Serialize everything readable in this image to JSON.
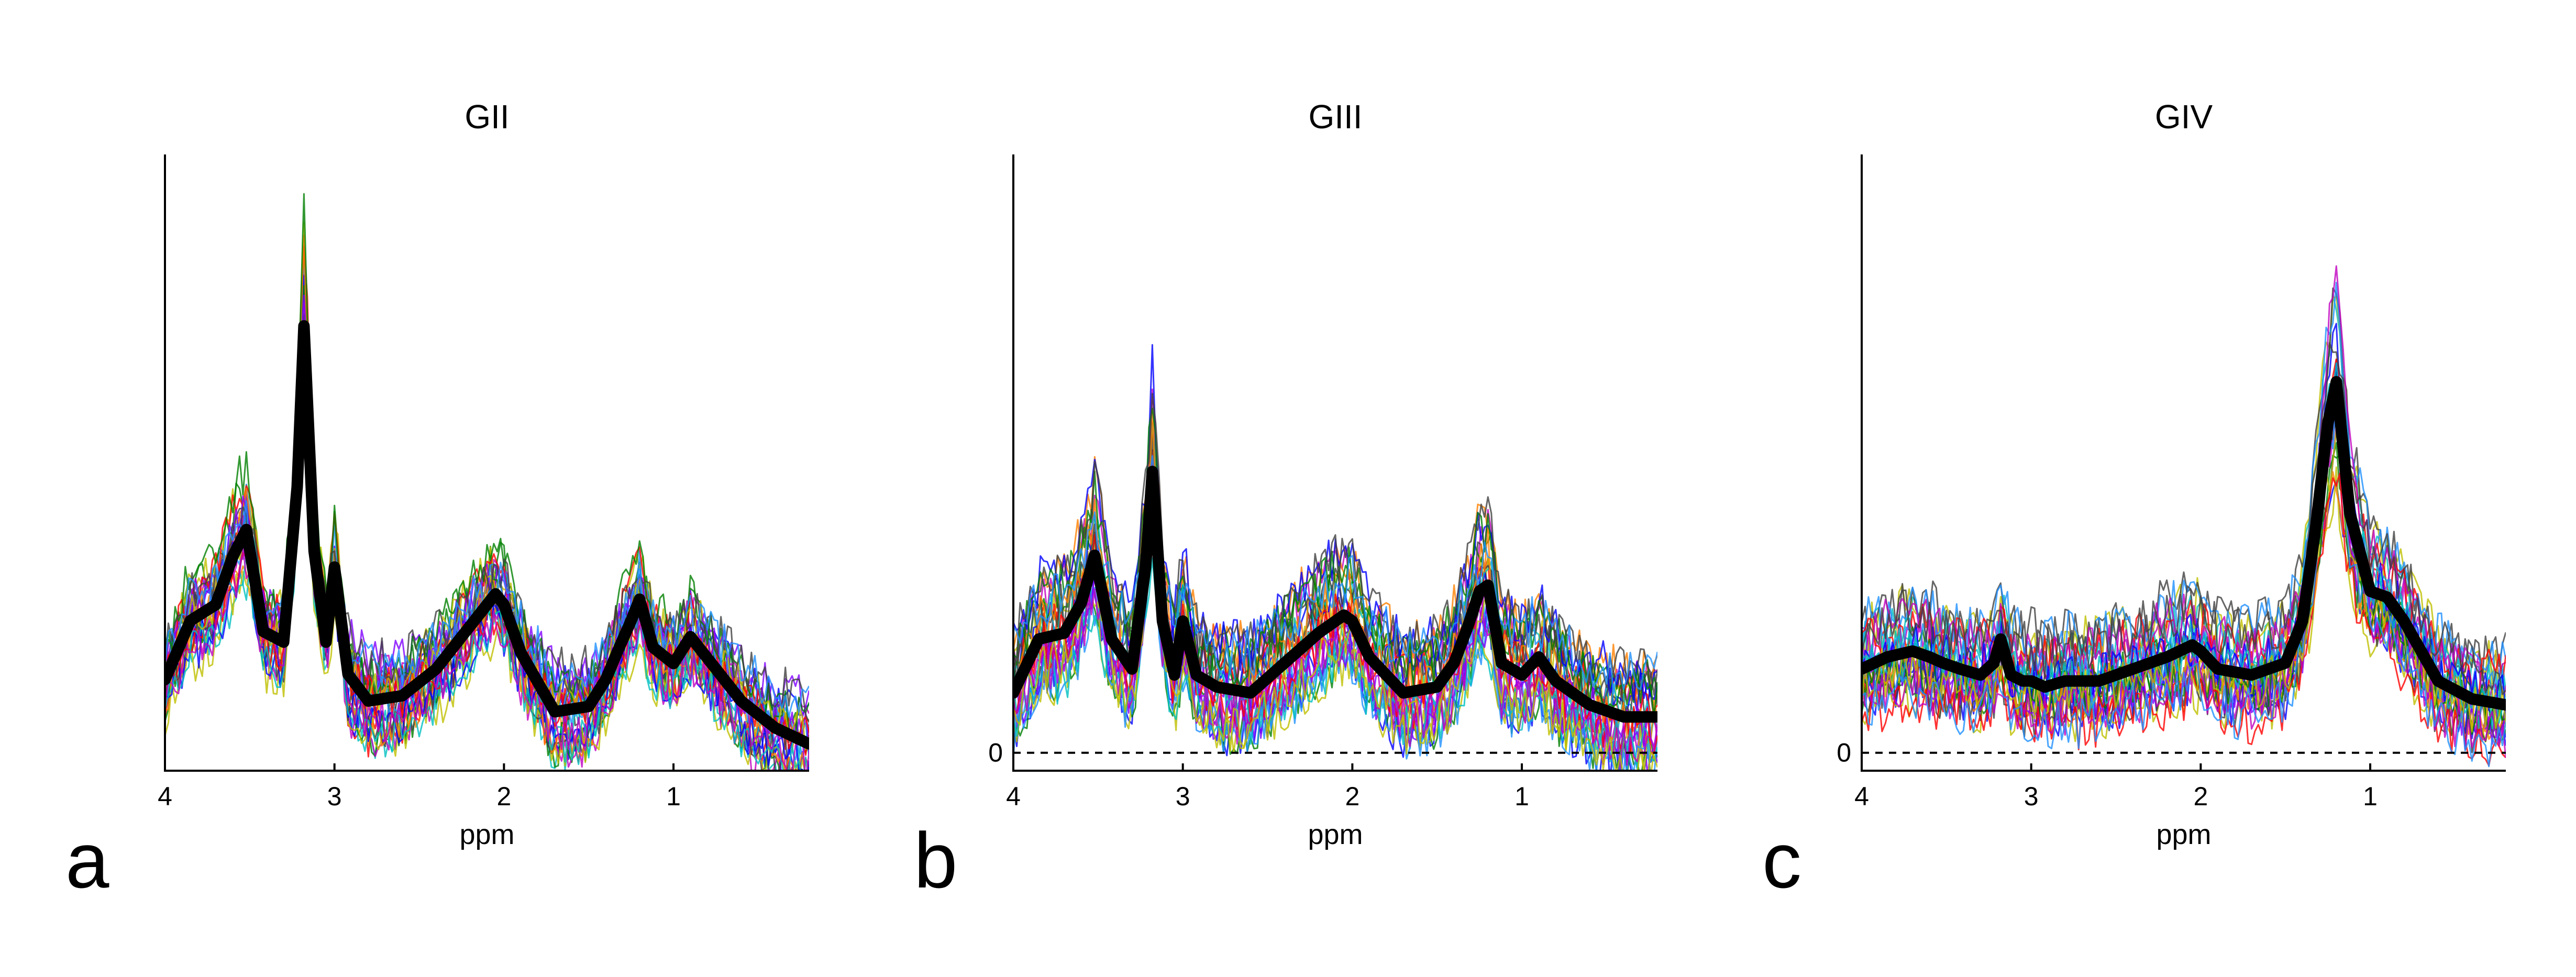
{
  "chart_data": [
    {
      "type": "line",
      "panel_label": "a",
      "title": "GII",
      "xlabel": "ppm",
      "ylabel": "",
      "xlim": [
        4,
        0.2
      ],
      "x_reversed": true,
      "xticks": [
        4,
        3,
        2,
        1
      ],
      "show_zero_line": false,
      "zero_label": "",
      "ylim": [
        -0.15,
        1.0
      ],
      "x": [
        4.0,
        3.85,
        3.7,
        3.6,
        3.52,
        3.42,
        3.3,
        3.22,
        3.18,
        3.12,
        3.05,
        3.0,
        2.92,
        2.8,
        2.6,
        2.4,
        2.2,
        2.05,
        2.0,
        1.9,
        1.7,
        1.5,
        1.4,
        1.32,
        1.25,
        1.2,
        1.12,
        1.0,
        0.9,
        0.8,
        0.6,
        0.4,
        0.2
      ],
      "mean": [
        0.02,
        0.13,
        0.16,
        0.25,
        0.3,
        0.11,
        0.09,
        0.38,
        0.68,
        0.26,
        0.09,
        0.23,
        0.03,
        -0.02,
        -0.01,
        0.04,
        0.12,
        0.18,
        0.16,
        0.07,
        -0.04,
        -0.03,
        0.02,
        0.08,
        0.13,
        0.17,
        0.08,
        0.05,
        0.1,
        0.06,
        -0.02,
        -0.07,
        -0.1
      ],
      "series_colors": [
        "#0000ff",
        "#008000",
        "#ff0000",
        "#00bfbf",
        "#bf00bf",
        "#bfbf00",
        "#404040",
        "#1e90ff",
        "#ff7f00",
        "#7f00ff"
      ]
    },
    {
      "type": "line",
      "panel_label": "b",
      "title": "GIII",
      "xlabel": "ppm",
      "ylabel": "",
      "xlim": [
        4,
        0.2
      ],
      "x_reversed": true,
      "xticks": [
        4,
        3,
        2,
        1
      ],
      "show_zero_line": true,
      "zero_label": "0",
      "ylim": [
        -0.03,
        1.0
      ],
      "x": [
        4.0,
        3.85,
        3.7,
        3.6,
        3.52,
        3.42,
        3.3,
        3.22,
        3.18,
        3.12,
        3.05,
        3.0,
        2.92,
        2.8,
        2.6,
        2.4,
        2.2,
        2.05,
        2.0,
        1.9,
        1.7,
        1.5,
        1.4,
        1.32,
        1.25,
        1.2,
        1.12,
        1.0,
        0.9,
        0.8,
        0.6,
        0.4,
        0.2
      ],
      "mean": [
        0.1,
        0.19,
        0.2,
        0.25,
        0.33,
        0.19,
        0.14,
        0.31,
        0.47,
        0.22,
        0.13,
        0.22,
        0.13,
        0.11,
        0.1,
        0.15,
        0.2,
        0.23,
        0.22,
        0.16,
        0.1,
        0.11,
        0.15,
        0.21,
        0.27,
        0.28,
        0.15,
        0.13,
        0.16,
        0.12,
        0.08,
        0.06,
        0.06
      ],
      "series_colors": [
        "#0000ff",
        "#008000",
        "#ff0000",
        "#00bfbf",
        "#bf00bf",
        "#bfbf00",
        "#404040",
        "#1e90ff",
        "#ff7f00",
        "#7f00ff"
      ]
    },
    {
      "type": "line",
      "panel_label": "c",
      "title": "GIV",
      "xlabel": "ppm",
      "ylabel": "",
      "xlim": [
        4,
        0.2
      ],
      "x_reversed": true,
      "xticks": [
        4,
        3,
        2,
        1
      ],
      "show_zero_line": true,
      "zero_label": "0",
      "ylim": [
        -0.03,
        1.0
      ],
      "x": [
        4.0,
        3.85,
        3.7,
        3.6,
        3.52,
        3.42,
        3.3,
        3.22,
        3.18,
        3.12,
        3.05,
        3.0,
        2.92,
        2.8,
        2.6,
        2.4,
        2.2,
        2.05,
        2.0,
        1.9,
        1.7,
        1.5,
        1.4,
        1.32,
        1.25,
        1.2,
        1.12,
        1.0,
        0.9,
        0.8,
        0.6,
        0.4,
        0.2
      ],
      "mean": [
        0.14,
        0.16,
        0.17,
        0.16,
        0.15,
        0.14,
        0.13,
        0.15,
        0.19,
        0.13,
        0.12,
        0.12,
        0.11,
        0.12,
        0.12,
        0.14,
        0.16,
        0.18,
        0.17,
        0.14,
        0.13,
        0.15,
        0.22,
        0.38,
        0.55,
        0.62,
        0.4,
        0.27,
        0.26,
        0.22,
        0.12,
        0.09,
        0.08
      ],
      "series_colors": [
        "#0000ff",
        "#008000",
        "#ff0000",
        "#00bfbf",
        "#bf00bf",
        "#bfbf00",
        "#404040",
        "#1e90ff",
        "#ff7f00",
        "#7f00ff"
      ]
    }
  ]
}
